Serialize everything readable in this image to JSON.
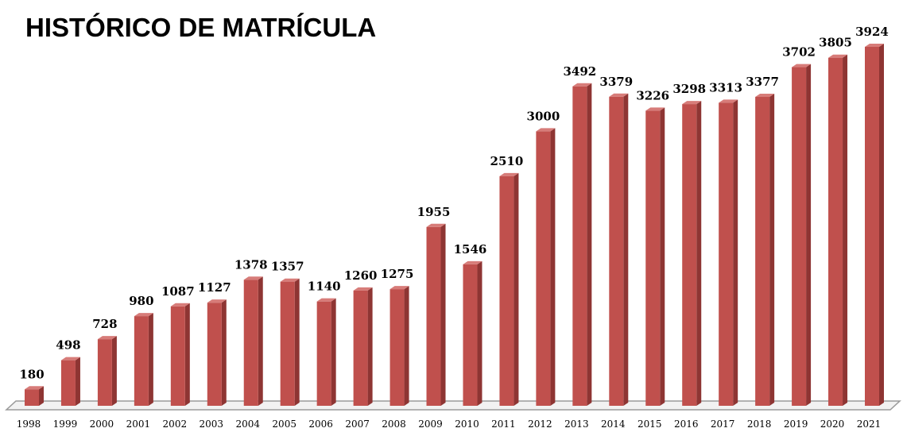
{
  "chart_data": {
    "type": "bar3d",
    "title": "HISTÓRICO DE MATRÍCULA",
    "categories": [
      "1998",
      "1999",
      "2000",
      "2001",
      "2002",
      "2003",
      "2004",
      "2005",
      "2006",
      "2007",
      "2008",
      "2009",
      "2010",
      "2011",
      "2012",
      "2013",
      "2014",
      "2015",
      "2016",
      "2017",
      "2018",
      "2019",
      "2020",
      "2021"
    ],
    "values": [
      180,
      498,
      728,
      980,
      1087,
      1127,
      1378,
      1357,
      1140,
      1260,
      1275,
      1955,
      1546,
      2510,
      3000,
      3492,
      3379,
      3226,
      3298,
      3313,
      3377,
      3702,
      3805,
      3924
    ],
    "color": "#c0504d"
  }
}
